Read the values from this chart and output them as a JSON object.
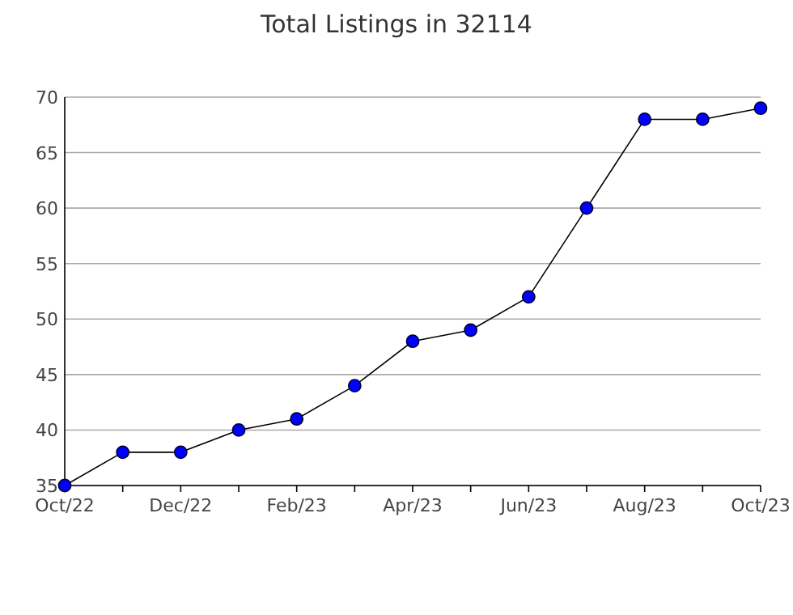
{
  "chart_data": {
    "type": "line",
    "title": "Total Listings in 32114",
    "categories": [
      "Oct/22",
      null,
      "Dec/22",
      null,
      "Feb/23",
      null,
      "Apr/23",
      null,
      "Jun/23",
      null,
      "Aug/23",
      null,
      "Oct/23"
    ],
    "series": [
      {
        "color": "#0000ff",
        "values": [
          35,
          38,
          38,
          40,
          41,
          44,
          48,
          49,
          52,
          60,
          68,
          68,
          69
        ]
      }
    ],
    "ylim": [
      35,
      70
    ],
    "yticks": [
      35,
      40,
      45,
      50,
      55,
      60,
      65,
      70
    ],
    "grid": "y",
    "marker": "circle",
    "line_style": "solid"
  }
}
